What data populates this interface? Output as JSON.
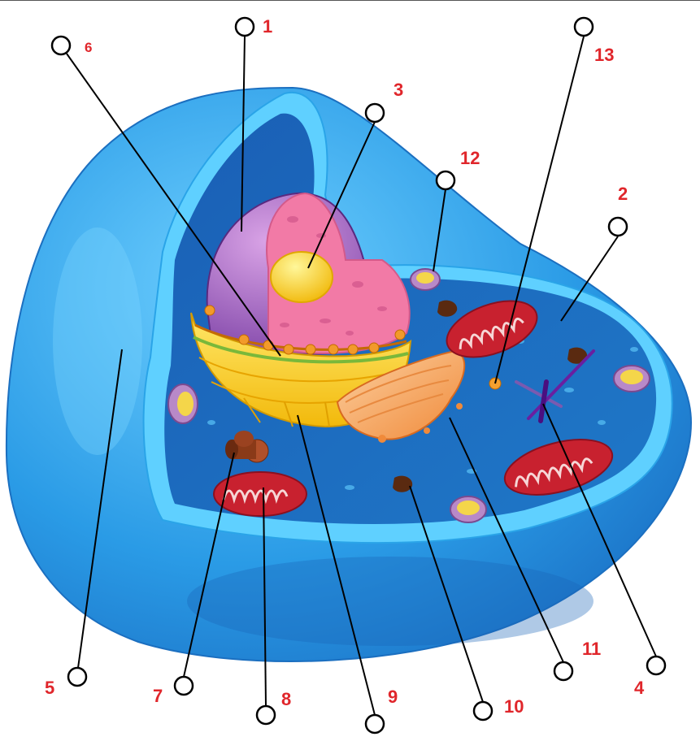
{
  "diagram": {
    "labels": {
      "n1": "1",
      "n2": "2",
      "n3": "3",
      "n4": "4",
      "n5": "5",
      "n6": "6",
      "n7": "7",
      "n8": "8",
      "n9": "9",
      "n10": "10",
      "n11": "11",
      "n12": "12",
      "n13": "13"
    },
    "colors": {
      "label": "#e0262b",
      "membrane": "#2aa4e8",
      "cytoplasm": "#1f6fbf",
      "nucleus_envelope": "#8a4fb0",
      "nucleoplasm": "#f07fa5",
      "nucleolus": "#f7d21a",
      "er": "#f6d21e",
      "golgi": "#f4a25a",
      "mitochondria": "#c8212f",
      "centriole": "#6a1fa0"
    }
  }
}
